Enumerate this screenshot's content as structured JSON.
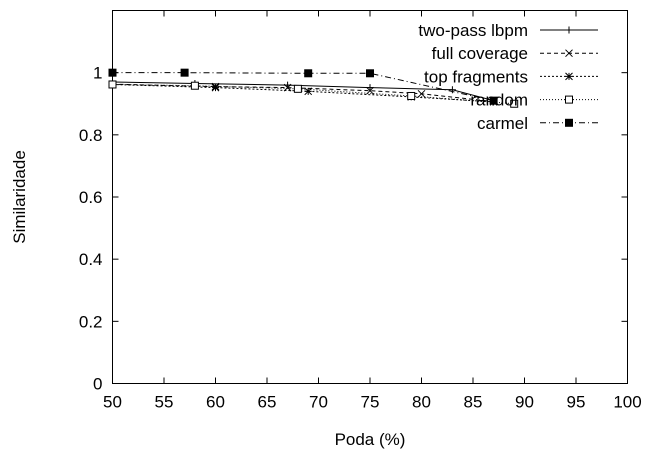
{
  "chart_data": {
    "type": "line",
    "title": "",
    "xlabel": "Poda (%)",
    "ylabel": "Similaridade",
    "xlim": [
      50,
      100
    ],
    "ylim": [
      0,
      1.2
    ],
    "xticks": [
      50,
      55,
      60,
      65,
      70,
      75,
      80,
      85,
      90,
      95,
      100
    ],
    "xtick_labels": [
      "50",
      "55",
      "60",
      "65",
      "70",
      "75",
      "80",
      "85",
      "90",
      "95",
      "100"
    ],
    "yticks": [
      0,
      0.2,
      0.4,
      0.6,
      0.8,
      1
    ],
    "ytick_labels": [
      "0",
      "0.2",
      "0.4",
      "0.6",
      "0.8",
      "1"
    ],
    "grid": false,
    "legend_position": "top-right",
    "series": [
      {
        "name": "two-pass lbpm",
        "marker": "plus",
        "dash": "solid",
        "points": [
          [
            50,
            0.97
          ],
          [
            58,
            0.965
          ],
          [
            67,
            0.96
          ],
          [
            75,
            0.952
          ],
          [
            83,
            0.945
          ],
          [
            87,
            0.91
          ]
        ]
      },
      {
        "name": "full coverage",
        "marker": "cross",
        "dash": "dashed",
        "points": [
          [
            50,
            0.963
          ],
          [
            60,
            0.955
          ],
          [
            67,
            0.952
          ],
          [
            75,
            0.942
          ],
          [
            80,
            0.932
          ],
          [
            87,
            0.907
          ]
        ]
      },
      {
        "name": "top fragments",
        "marker": "star",
        "dash": "dotted",
        "points": [
          [
            50,
            0.962
          ],
          [
            60,
            0.952
          ],
          [
            69,
            0.94
          ],
          [
            79,
            0.922
          ],
          [
            87,
            0.906
          ]
        ]
      },
      {
        "name": "random",
        "marker": "open-square",
        "dash": "fine-dotted",
        "points": [
          [
            50,
            0.962
          ],
          [
            58,
            0.958
          ],
          [
            68,
            0.948
          ],
          [
            79,
            0.925
          ],
          [
            89,
            0.9
          ]
        ]
      },
      {
        "name": "carmel",
        "marker": "filled-square",
        "dash": "dash-dot",
        "points": [
          [
            50,
            1.0
          ],
          [
            57,
            1.0
          ],
          [
            69,
            0.998
          ],
          [
            75,
            0.998
          ],
          [
            87,
            0.91
          ]
        ]
      }
    ]
  }
}
